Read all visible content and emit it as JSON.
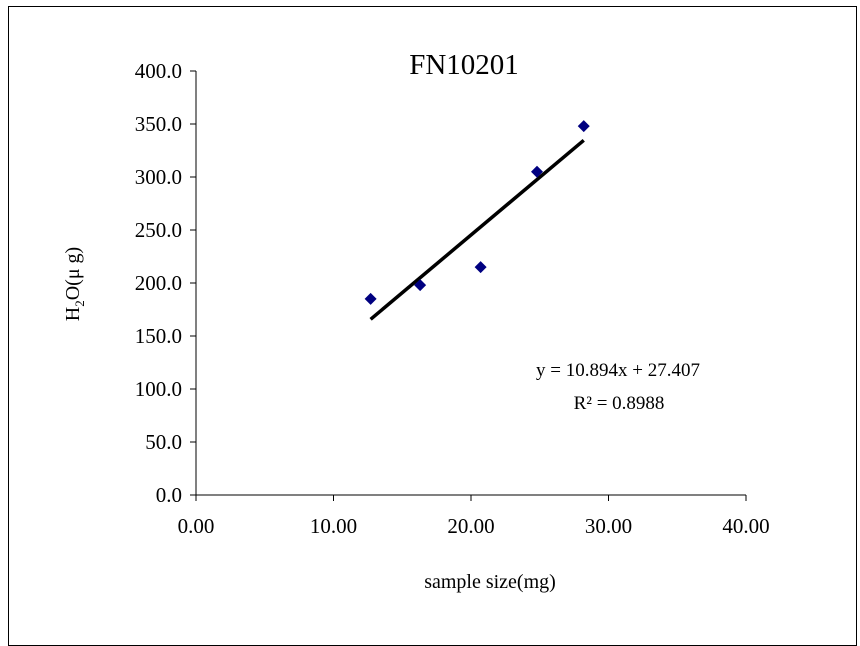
{
  "chart_data": {
    "type": "scatter",
    "title": "FN10201",
    "xlabel": "sample size(mg)",
    "ylabel": "H2O(μ g)",
    "ylabel_parts": {
      "pre": "H",
      "sub": "2",
      "post": "O(μ g)"
    },
    "xlim": [
      0,
      40
    ],
    "ylim": [
      0,
      400
    ],
    "x_ticks": [
      {
        "value": 0,
        "label": "0.00"
      },
      {
        "value": 10,
        "label": "10.00"
      },
      {
        "value": 20,
        "label": "20.00"
      },
      {
        "value": 30,
        "label": "30.00"
      },
      {
        "value": 40,
        "label": "40.00"
      }
    ],
    "y_ticks": [
      {
        "value": 0,
        "label": "0.0"
      },
      {
        "value": 50,
        "label": "50.0"
      },
      {
        "value": 100,
        "label": "100.0"
      },
      {
        "value": 150,
        "label": "150.0"
      },
      {
        "value": 200,
        "label": "200.0"
      },
      {
        "value": 250,
        "label": "250.0"
      },
      {
        "value": 300,
        "label": "300.0"
      },
      {
        "value": 350,
        "label": "350.0"
      },
      {
        "value": 400,
        "label": "400.0"
      }
    ],
    "series": [
      {
        "points": [
          {
            "x": 12.7,
            "y": 185
          },
          {
            "x": 16.3,
            "y": 198
          },
          {
            "x": 20.7,
            "y": 215
          },
          {
            "x": 24.8,
            "y": 305
          },
          {
            "x": 28.2,
            "y": 348
          }
        ],
        "marker": "diamond",
        "color": "#000080"
      }
    ],
    "trendline": {
      "type": "linear",
      "slope": 10.894,
      "intercept": 27.407,
      "x_range": [
        12.7,
        28.2
      ],
      "color": "#000000",
      "equation": "y = 10.894x + 27.407",
      "r2": "R² = 0.8988"
    },
    "grid": false,
    "legend": "none"
  }
}
